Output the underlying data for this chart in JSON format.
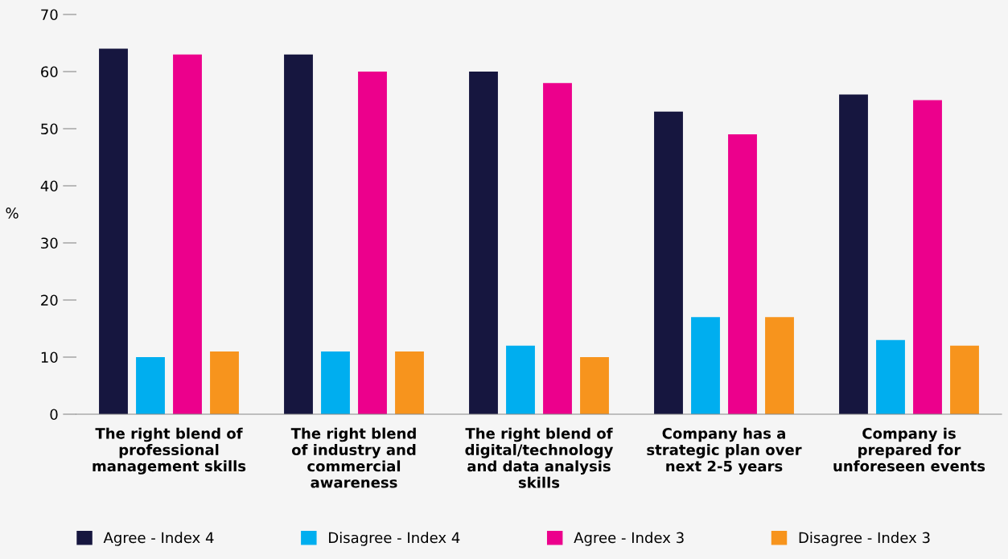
{
  "chart_data": {
    "type": "bar",
    "ylabel": "%",
    "categories": [
      "The right blend of\nprofessional\nmanagement skills",
      "The right blend\nof industry and\ncommercial\nawareness",
      "The right blend of\ndigital/technology\nand data analysis\nskills",
      "Company has a\nstrategic plan over\nnext 2-5 years",
      "Company is\nprepared for\nunforeseen events"
    ],
    "series": [
      {
        "name": "Agree - Index 4",
        "color": "#16163f",
        "values": [
          64,
          63,
          60,
          53,
          56
        ]
      },
      {
        "name": "Disagree - Index 4",
        "color": "#00aeef",
        "values": [
          10,
          11,
          12,
          17,
          13
        ]
      },
      {
        "name": "Agree - Index 3",
        "color": "#ec008c",
        "values": [
          63,
          60,
          58,
          49,
          55
        ]
      },
      {
        "name": "Disagree - Index 3",
        "color": "#f7941d",
        "values": [
          11,
          11,
          10,
          17,
          12
        ]
      }
    ],
    "ylim": [
      0,
      70
    ],
    "yticks": [
      0,
      10,
      20,
      30,
      40,
      50,
      60,
      70
    ],
    "grid": false,
    "legend": "bottom"
  }
}
